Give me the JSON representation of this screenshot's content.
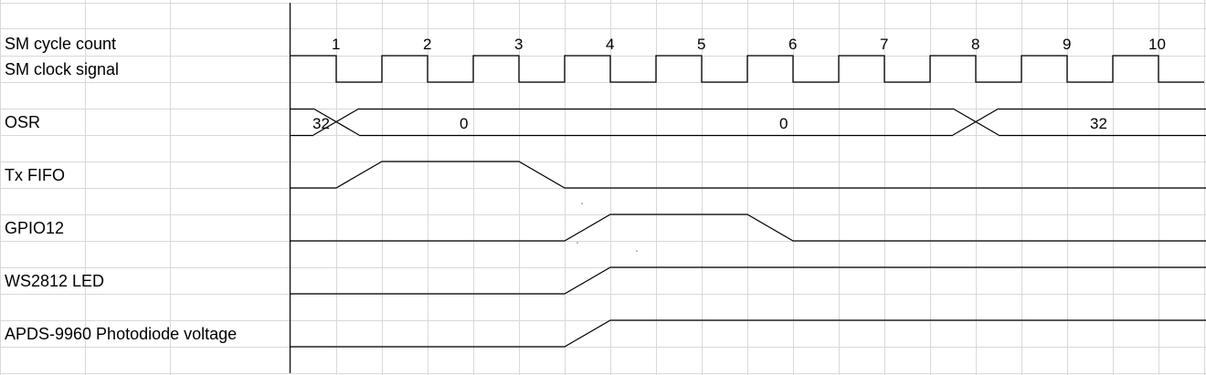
{
  "diagram": {
    "type": "timing-diagram",
    "cycle_label": "SM cycle count",
    "cycles": [
      "1",
      "2",
      "3",
      "4",
      "5",
      "6",
      "7",
      "8",
      "9",
      "10"
    ],
    "clock_label": "SM clock signal",
    "signals": [
      {
        "id": "osr",
        "label": "OSR",
        "kind": "bus",
        "segments": [
          {
            "start": 0,
            "end": 1,
            "value": "32"
          },
          {
            "start": 1,
            "end": 5,
            "value": "0"
          },
          {
            "start": 5,
            "end": 15,
            "value": "0"
          },
          {
            "start": 15,
            "end": 20,
            "value": "32"
          }
        ]
      },
      {
        "id": "txfifo",
        "label": "Tx FIFO",
        "kind": "wave",
        "levels": [
          [
            0,
            0
          ],
          [
            1,
            1
          ],
          [
            5,
            0
          ]
        ]
      },
      {
        "id": "gpio12",
        "label": "GPIO12",
        "kind": "wave",
        "levels": [
          [
            0,
            0
          ],
          [
            6,
            1
          ],
          [
            10,
            0
          ]
        ]
      },
      {
        "id": "ws2812",
        "label": "WS2812 LED",
        "kind": "wave",
        "levels": [
          [
            0,
            0
          ],
          [
            6,
            1
          ]
        ]
      },
      {
        "id": "apds",
        "label": "APDS-9960 Photodiode voltage",
        "kind": "wave",
        "levels": [
          [
            0,
            0
          ],
          [
            6,
            1
          ]
        ]
      }
    ],
    "colors": {
      "grid": "#d9d9d9",
      "line": "#000000",
      "background": "#ffffff"
    }
  }
}
